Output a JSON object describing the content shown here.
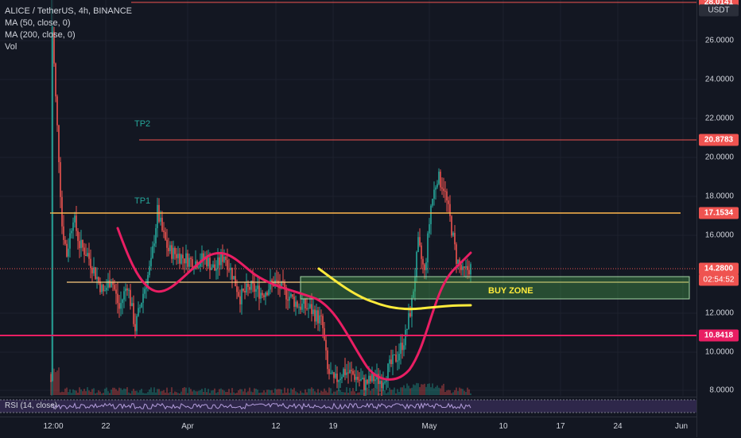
{
  "legend": {
    "symbol": "ALICE / TetherUS, 4h, BINANCE",
    "ma50": "MA (50, close, 0)",
    "ma200": "MA (200, close, 0)",
    "vol": "Vol"
  },
  "price_scale": {
    "currency": "USDT",
    "ticks": [
      "26.0000",
      "24.0000",
      "22.0000",
      "20.0000",
      "18.0000",
      "16.0000",
      "12.0000",
      "10.0000",
      "8.0000"
    ],
    "tags": {
      "top": "28.0141",
      "tp2": "20.8783",
      "tp1": "17.1534",
      "current": "14.2800",
      "countdown": "02:54:52",
      "support": "10.8418"
    }
  },
  "annotations": {
    "tp2": "TP2",
    "tp1": "TP1",
    "buy_zone": "BUY ZONE"
  },
  "rsi": {
    "label": "RSI (14, close)"
  },
  "time_axis": {
    "labels": [
      "12:00",
      "22",
      "Apr",
      "12",
      "19",
      "May",
      "10",
      "17",
      "24",
      "Jun"
    ]
  },
  "colors": {
    "background": "#131722",
    "up": "#26a69a",
    "down": "#ef5350",
    "ma_pink": "#e91e63",
    "ma_yellow": "#ffeb3b",
    "level_orange": "#ff9800",
    "zone_green": "#4caf50",
    "rsi_purple": "#7e57c2"
  },
  "chart_data": {
    "type": "candlestick",
    "symbol": "ALICE/USDT",
    "interval": "4h",
    "exchange": "BINANCE",
    "levels": {
      "top": 28.0141,
      "tp2": 20.8783,
      "tp1": 17.1534,
      "current": 14.28,
      "support": 10.8418
    },
    "buy_zone": [
      12.7,
      13.6
    ],
    "y_range": [
      7.5,
      28.1
    ]
  }
}
